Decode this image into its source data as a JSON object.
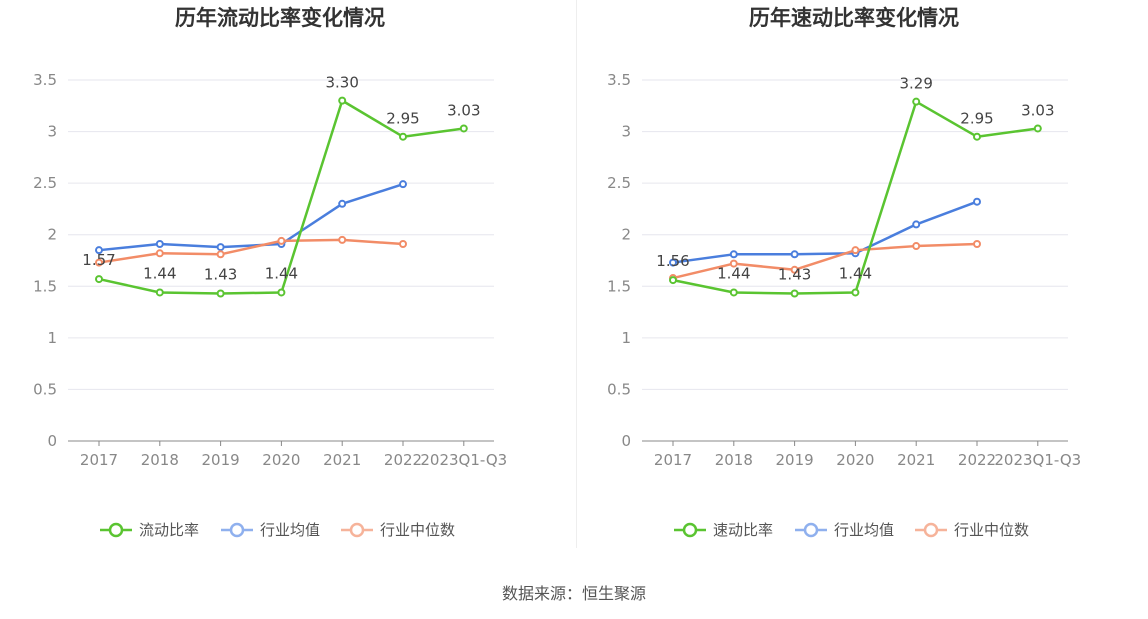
{
  "source_label": "数据来源：恒生聚源",
  "chart_data": [
    {
      "type": "line",
      "title": "历年流动比率变化情况",
      "categories": [
        "2017",
        "2018",
        "2019",
        "2020",
        "2021",
        "2022",
        "2023Q1-Q3"
      ],
      "ylim": [
        0,
        3.5
      ],
      "yticks": [
        "0",
        "0.5",
        "1",
        "1.5",
        "2",
        "2.5",
        "3",
        "3.5"
      ],
      "grid": true,
      "legend_position": "bottom",
      "series": [
        {
          "name": "流动比率",
          "color": "#5ac431",
          "values": [
            1.57,
            1.44,
            1.43,
            1.44,
            3.3,
            2.95,
            3.03
          ],
          "labels": [
            "1.57",
            "1.44",
            "1.43",
            "1.44",
            "3.30",
            "2.95",
            "3.03"
          ]
        },
        {
          "name": "行业均值",
          "color": "#4a7edd",
          "values": [
            1.85,
            1.91,
            1.88,
            1.91,
            2.3,
            2.49,
            null
          ]
        },
        {
          "name": "行业中位数",
          "color": "#f28c67",
          "values": [
            1.73,
            1.82,
            1.81,
            1.94,
            1.95,
            1.91,
            null
          ]
        }
      ]
    },
    {
      "type": "line",
      "title": "历年速动比率变化情况",
      "categories": [
        "2017",
        "2018",
        "2019",
        "2020",
        "2021",
        "2022",
        "2023Q1-Q3"
      ],
      "ylim": [
        0,
        3.5
      ],
      "yticks": [
        "0",
        "0.5",
        "1",
        "1.5",
        "2",
        "2.5",
        "3",
        "3.5"
      ],
      "grid": true,
      "legend_position": "bottom",
      "series": [
        {
          "name": "速动比率",
          "color": "#5ac431",
          "values": [
            1.56,
            1.44,
            1.43,
            1.44,
            3.29,
            2.95,
            3.03
          ],
          "labels": [
            "1.56",
            "1.44",
            "1.43",
            "1.44",
            "3.29",
            "2.95",
            "3.03"
          ]
        },
        {
          "name": "行业均值",
          "color": "#4a7edd",
          "values": [
            1.73,
            1.81,
            1.81,
            1.82,
            2.1,
            2.32,
            null
          ]
        },
        {
          "name": "行业中位数",
          "color": "#f28c67",
          "values": [
            1.58,
            1.72,
            1.66,
            1.85,
            1.89,
            1.91,
            null
          ]
        }
      ]
    }
  ]
}
